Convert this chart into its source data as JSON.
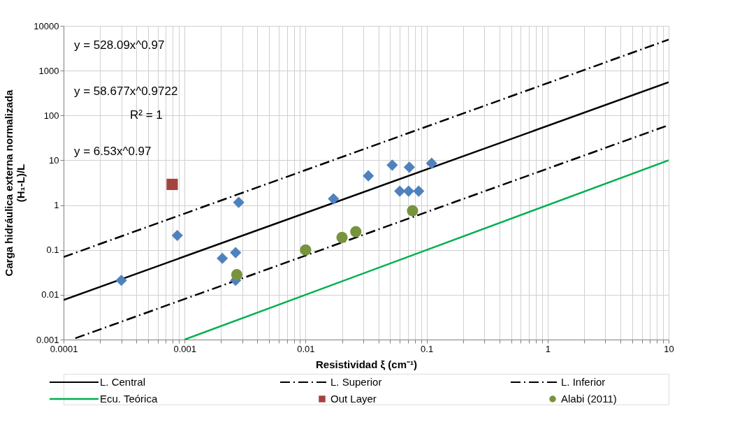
{
  "chart_data": {
    "type": "scatter",
    "xlabel": "Resistividad ξ (cm⁻¹)",
    "ylabel": "Carga hidráulica externa normalizada\n(H₁-L)/L",
    "log": "xy",
    "grid": true,
    "legend": "bottom",
    "xlim": [
      0.0001,
      10
    ],
    "ylim": [
      0.001,
      10000
    ],
    "xticks": [
      0.0001,
      {
        "value": 0.0002,
        "label": null
      },
      {
        "value": 0.0003,
        "label": null
      },
      {
        "value": 0.0004,
        "label": null
      },
      {
        "value": 0.0005,
        "label": null
      },
      {
        "value": 0.0006,
        "label": null
      },
      {
        "value": 0.0007,
        "label": null
      },
      {
        "value": 0.0008,
        "label": null
      },
      {
        "value": 0.0009,
        "label": null
      },
      0.001,
      {
        "value": 0.002,
        "label": null
      },
      {
        "value": 0.003,
        "label": null
      },
      {
        "value": 0.004,
        "label": null
      },
      {
        "value": 0.005,
        "label": null
      },
      {
        "value": 0.006,
        "label": null
      },
      {
        "value": 0.007,
        "label": null
      },
      {
        "value": 0.008,
        "label": null
      },
      {
        "value": 0.009,
        "label": null
      },
      0.01,
      {
        "value": 0.02,
        "label": null
      },
      {
        "value": 0.03,
        "label": null
      },
      {
        "value": 0.04,
        "label": null
      },
      {
        "value": 0.05,
        "label": null
      },
      {
        "value": 0.06,
        "label": null
      },
      {
        "value": 0.07,
        "label": null
      },
      {
        "value": 0.08,
        "label": null
      },
      {
        "value": 0.09,
        "label": null
      },
      0.1,
      {
        "value": 0.2,
        "label": null
      },
      {
        "value": 0.3,
        "label": null
      },
      {
        "value": 0.4,
        "label": null
      },
      {
        "value": 0.5,
        "label": null
      },
      {
        "value": 0.6,
        "label": null
      },
      {
        "value": 0.7,
        "label": null
      },
      {
        "value": 0.8,
        "label": null
      },
      {
        "value": 0.9,
        "label": null
      },
      1,
      {
        "value": 2,
        "label": null
      },
      {
        "value": 3,
        "label": null
      },
      {
        "value": 4,
        "label": null
      },
      {
        "value": 5,
        "label": null
      },
      {
        "value": 6,
        "label": null
      },
      {
        "value": 7,
        "label": null
      },
      {
        "value": 8,
        "label": null
      },
      {
        "value": 9,
        "label": null
      },
      10
    ],
    "yticks": [
      0.001,
      0.01,
      0.1,
      1,
      10,
      100,
      1000,
      10000
    ],
    "annotations": [
      "y = 528.09x^0.97",
      "y = 58.677x^0.9722",
      "R² = 1",
      "y = 6.53x^0.97"
    ],
    "series": [
      {
        "name": "L. Central",
        "type": "line",
        "color": "#000000",
        "line_style": "solid",
        "marker": "none",
        "x": [
          0.0001,
          10
        ],
        "values": [
          0.00765,
          550.5
        ]
      },
      {
        "name": "L. Superior",
        "type": "line",
        "color": "#000000",
        "line_style": "dashdot",
        "marker": "none",
        "x": [
          0.0001,
          10
        ],
        "values": [
          0.0695,
          4929
        ]
      },
      {
        "name": "L. Inferior",
        "type": "line",
        "color": "#000000",
        "line_style": "dashdot",
        "marker": "none",
        "x": [
          0.000125,
          10
        ],
        "values": [
          0.00107,
          60.9
        ]
      },
      {
        "name": "Ecu. Teórica",
        "type": "line",
        "color": "#00b050",
        "line_style": "solid",
        "marker": "none",
        "x": [
          0.001,
          10
        ],
        "values": [
          0.001,
          10
        ]
      },
      {
        "color": "#4f81bd",
        "marker": "diamond",
        "x": [
          0.0003,
          0.00087,
          0.0028,
          0.00205,
          0.00264,
          0.00264,
          0.017,
          0.033,
          0.052,
          0.072,
          0.11,
          0.06,
          0.071,
          0.086
        ],
        "values": [
          0.021,
          0.21,
          1.15,
          0.065,
          0.087,
          0.021,
          1.38,
          4.5,
          7.8,
          7.0,
          8.6,
          2.05,
          2.05,
          2.05
        ]
      },
      {
        "name": "Out Layer",
        "color": "#a5423f",
        "marker": "square",
        "x": [
          0.00079
        ],
        "values": [
          2.9
        ]
      },
      {
        "name": "Alabi (2011)",
        "color": "#77933c",
        "marker": "circle",
        "x": [
          0.0027,
          0.01,
          0.02,
          0.026,
          0.0765
        ],
        "values": [
          0.028,
          0.1,
          0.19,
          0.255,
          0.75
        ]
      }
    ]
  }
}
